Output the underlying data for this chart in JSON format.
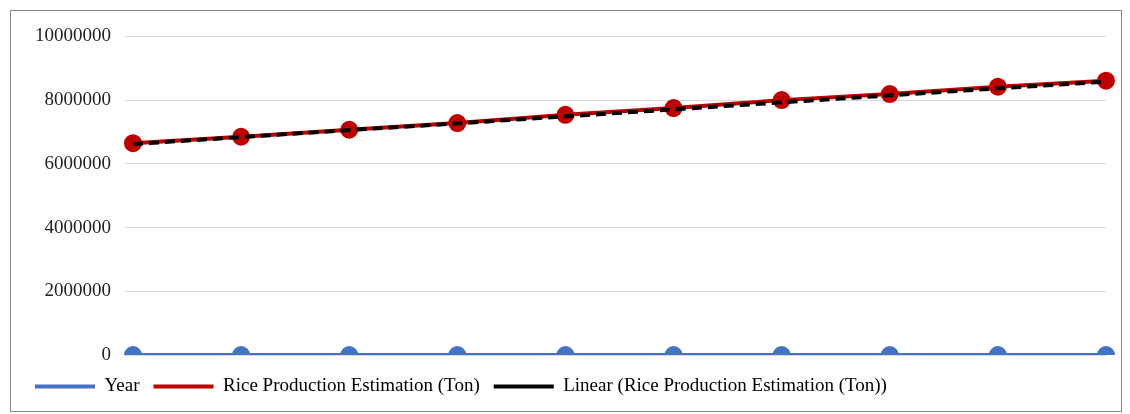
{
  "chart_data": {
    "type": "line",
    "categories": [
      null,
      null,
      null,
      null,
      null,
      null,
      null,
      null,
      null,
      null
    ],
    "series": [
      {
        "name": "Year",
        "color": "#4472c4",
        "values": [
          0,
          0,
          0,
          0,
          0,
          0,
          0,
          0,
          0,
          0
        ]
      },
      {
        "name": "Rice Production Estimation (Ton)",
        "color": "#c00000",
        "values": [
          6650000,
          6850000,
          7070000,
          7280000,
          7540000,
          7750000,
          8000000,
          8190000,
          8420000,
          8610000
        ]
      },
      {
        "name": "Linear (Rice Production Estimation (Ton))",
        "color": "#000000",
        "line_style": "dashed",
        "marker": "none",
        "values": [
          6620000,
          6840000,
          7060000,
          7270000,
          7490000,
          7710000,
          7930000,
          8150000,
          8370000,
          8580000
        ]
      }
    ],
    "ylim": [
      0,
      10000000
    ],
    "yticks": [
      0,
      2000000,
      4000000,
      6000000,
      8000000,
      10000000
    ],
    "grid": "y",
    "legend": "bottom",
    "marker": "circle",
    "line_style": "solid",
    "tick_labels": "y"
  }
}
